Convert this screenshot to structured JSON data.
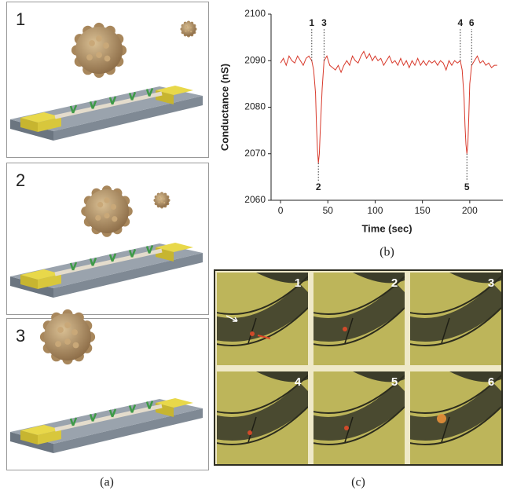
{
  "panel_a": {
    "label": "(a)",
    "steps": [
      "1",
      "2",
      "3"
    ]
  },
  "panel_c": {
    "label": "(c)",
    "frames": [
      "1",
      "2",
      "3",
      "4",
      "5",
      "6"
    ]
  },
  "chart_data": {
    "type": "line",
    "label": "(b)",
    "xlabel": "Time (sec)",
    "ylabel": "Conductance (nS)",
    "x": [
      0,
      3,
      6,
      9,
      12,
      15,
      18,
      21,
      24,
      27,
      30,
      33,
      35,
      37,
      38,
      39,
      40,
      41,
      42,
      44,
      46,
      49,
      52,
      55,
      58,
      61,
      64,
      67,
      70,
      73,
      76,
      79,
      82,
      85,
      88,
      91,
      94,
      97,
      100,
      103,
      106,
      109,
      112,
      115,
      118,
      121,
      124,
      127,
      130,
      133,
      136,
      139,
      142,
      145,
      148,
      151,
      154,
      157,
      160,
      163,
      166,
      169,
      172,
      175,
      178,
      181,
      184,
      187,
      190,
      192,
      194,
      195,
      196,
      197,
      198,
      199,
      200,
      202,
      205,
      208,
      211,
      214,
      217,
      220,
      223,
      226,
      229
    ],
    "series": [
      {
        "color": "#d8392b",
        "values": [
          2089.5,
          2090.5,
          2089,
          2091,
          2090,
          2089.5,
          2091,
          2090,
          2089,
          2090.5,
          2091,
          2090,
          2088,
          2083,
          2076,
          2071,
          2068,
          2070,
          2075,
          2084,
          2090,
          2091,
          2089,
          2088.5,
          2088,
          2089,
          2087.5,
          2089,
          2090,
          2089,
          2091,
          2090,
          2089.5,
          2091,
          2092,
          2090.5,
          2091.5,
          2090,
          2091,
          2090,
          2090.5,
          2089,
          2090,
          2091,
          2089.5,
          2090,
          2089,
          2090.5,
          2089,
          2090,
          2088.5,
          2090,
          2089,
          2090.5,
          2089,
          2090,
          2089,
          2090,
          2089.5,
          2090,
          2089,
          2090,
          2089.5,
          2088,
          2090,
          2089,
          2090,
          2089.5,
          2090,
          2088,
          2082,
          2076,
          2072,
          2070,
          2072,
          2078,
          2085,
          2089,
          2090,
          2091,
          2089.5,
          2090,
          2089,
          2089.5,
          2088.5,
          2089,
          2089
        ]
      }
    ],
    "xlim": [
      -10,
      235
    ],
    "ylim": [
      2060,
      2100
    ],
    "xticks": [
      0,
      50,
      100,
      150,
      200
    ],
    "yticks": [
      2060,
      2070,
      2080,
      2090,
      2100
    ],
    "annotations": [
      {
        "text": "1",
        "x": 33,
        "y": 2090
      },
      {
        "text": "2",
        "x": 40,
        "y": 2068
      },
      {
        "text": "3",
        "x": 46,
        "y": 2090
      },
      {
        "text": "4",
        "x": 190,
        "y": 2090
      },
      {
        "text": "5",
        "x": 197,
        "y": 2070
      },
      {
        "text": "6",
        "x": 202,
        "y": 2089
      }
    ]
  }
}
